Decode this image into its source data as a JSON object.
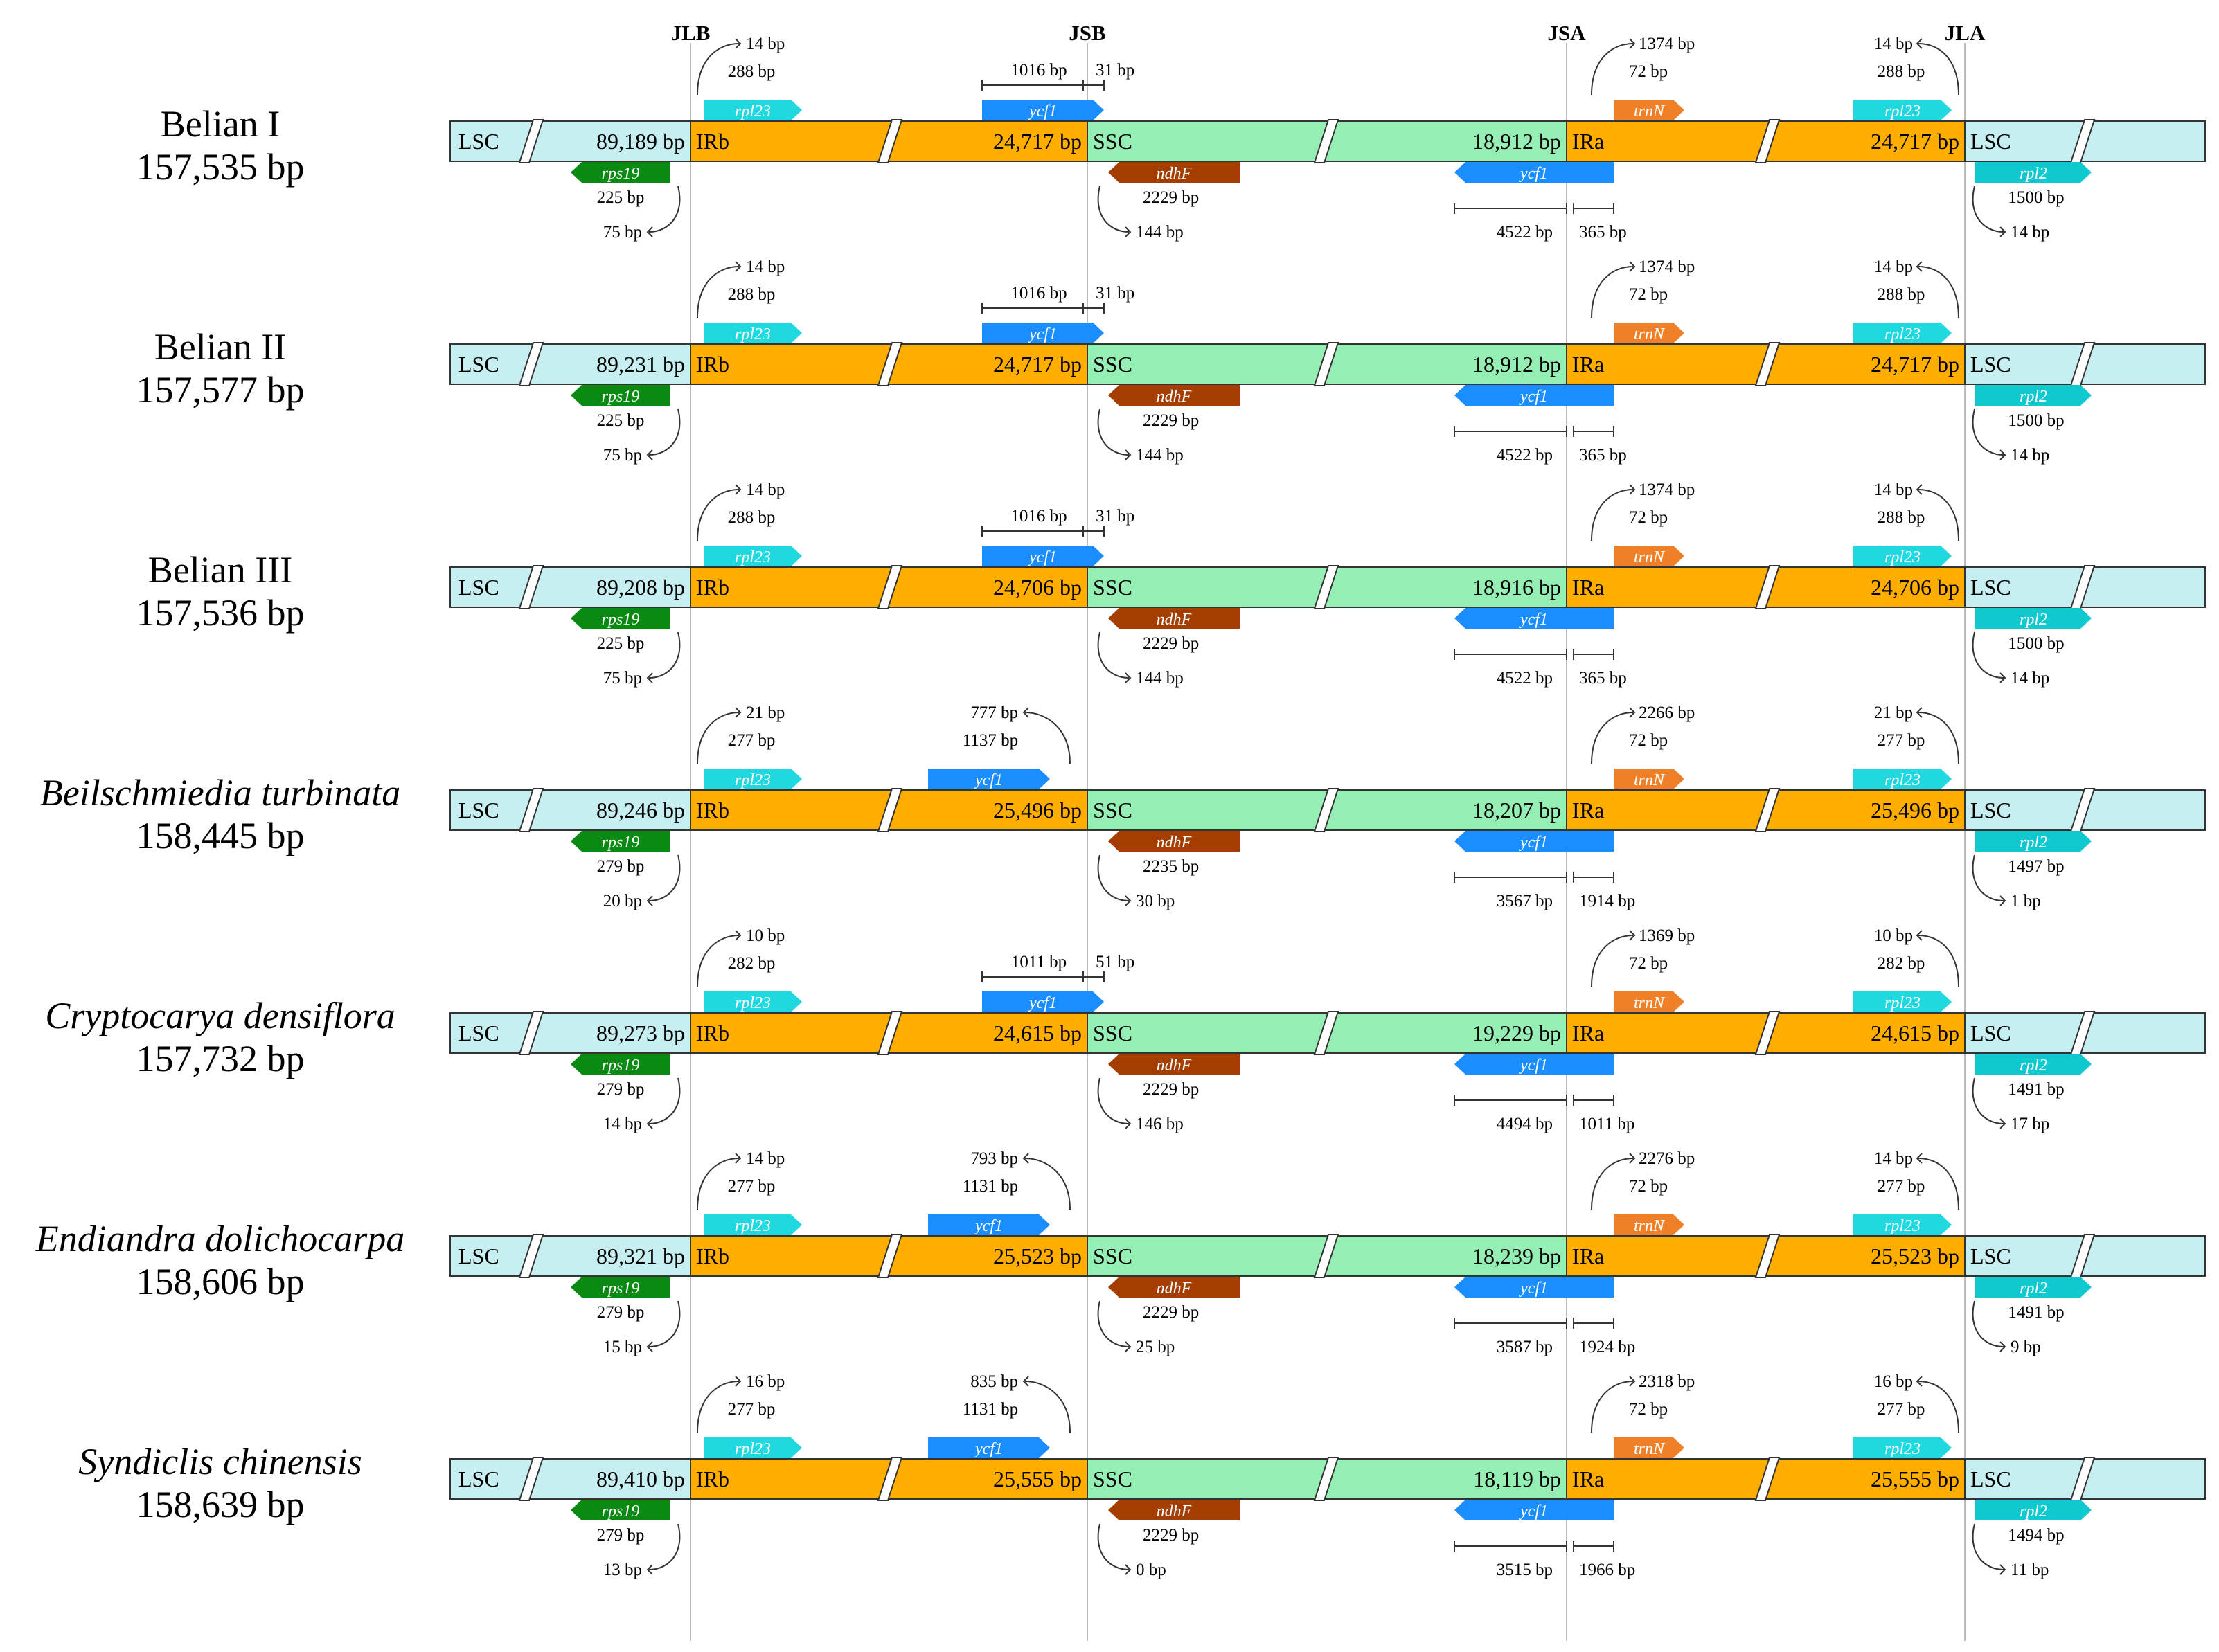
{
  "figure": {
    "junctions": [
      "JLB",
      "JSB",
      "JSA",
      "JLA"
    ],
    "region_labels": {
      "lsc": "LSC",
      "irb": "IRb",
      "ssc": "SSC",
      "ira": "IRa"
    }
  },
  "colors": {
    "lsc": "#c7eef0",
    "ir": "#ffae00",
    "ssc": "#95eeb4",
    "rps19": "#0a8a12",
    "rpl23": "#20d8e0",
    "ycf1": "#1a8dff",
    "ndhF": "#a33e00",
    "trnN": "#f08028",
    "rpl2": "#10c8d0",
    "line": "#333333",
    "guide": "#bdbdbd"
  },
  "genomes": [
    {
      "name": "Belian I",
      "italic": false,
      "size": "157,535 bp",
      "lsc": "89,189 bp",
      "irb": "24,717 bp",
      "ssc": "18,912 bp",
      "ira": "24,717 bp",
      "rpl23_left": {
        "gene": "rpl23",
        "over": "14 bp",
        "len": "288 bp"
      },
      "ycf1_irb": {
        "gene": "ycf1",
        "style": "bracket",
        "in_ir": "1016 bp",
        "in_ssc": "31 bp"
      },
      "trnN": {
        "gene": "trnN",
        "dist": "1374 bp",
        "len": "72 bp"
      },
      "rpl23_right": {
        "gene": "rpl23",
        "over": "14 bp",
        "len": "288 bp"
      },
      "rps19": {
        "gene": "rps19",
        "len": "225 bp",
        "over": "75 bp"
      },
      "ndhF": {
        "gene": "ndhF",
        "len": "2229 bp",
        "dist": "144 bp"
      },
      "ycf1_ssc": {
        "gene": "ycf1",
        "in_ssc": "4522 bp",
        "in_ira": "365 bp"
      },
      "rpl2": {
        "gene": "rpl2",
        "len": "1500 bp",
        "dist": "14 bp"
      }
    },
    {
      "name": "Belian II",
      "italic": false,
      "size": "157,577 bp",
      "lsc": "89,231 bp",
      "irb": "24,717 bp",
      "ssc": "18,912 bp",
      "ira": "24,717 bp",
      "rpl23_left": {
        "gene": "rpl23",
        "over": "14 bp",
        "len": "288 bp"
      },
      "ycf1_irb": {
        "gene": "ycf1",
        "style": "bracket",
        "in_ir": "1016 bp",
        "in_ssc": "31 bp"
      },
      "trnN": {
        "gene": "trnN",
        "dist": "1374 bp",
        "len": "72 bp"
      },
      "rpl23_right": {
        "gene": "rpl23",
        "over": "14 bp",
        "len": "288 bp"
      },
      "rps19": {
        "gene": "rps19",
        "len": "225 bp",
        "over": "75 bp"
      },
      "ndhF": {
        "gene": "ndhF",
        "len": "2229 bp",
        "dist": "144 bp"
      },
      "ycf1_ssc": {
        "gene": "ycf1",
        "in_ssc": "4522 bp",
        "in_ira": "365 bp"
      },
      "rpl2": {
        "gene": "rpl2",
        "len": "1500 bp",
        "dist": "14 bp"
      }
    },
    {
      "name": "Belian III",
      "italic": false,
      "size": "157,536 bp",
      "lsc": "89,208 bp",
      "irb": "24,706 bp",
      "ssc": "18,916 bp",
      "ira": "24,706 bp",
      "rpl23_left": {
        "gene": "rpl23",
        "over": "14 bp",
        "len": "288 bp"
      },
      "ycf1_irb": {
        "gene": "ycf1",
        "style": "bracket",
        "in_ir": "1016 bp",
        "in_ssc": "31 bp"
      },
      "trnN": {
        "gene": "trnN",
        "dist": "1374 bp",
        "len": "72 bp"
      },
      "rpl23_right": {
        "gene": "rpl23",
        "over": "14 bp",
        "len": "288 bp"
      },
      "rps19": {
        "gene": "rps19",
        "len": "225 bp",
        "over": "75 bp"
      },
      "ndhF": {
        "gene": "ndhF",
        "len": "2229 bp",
        "dist": "144 bp"
      },
      "ycf1_ssc": {
        "gene": "ycf1",
        "in_ssc": "4522 bp",
        "in_ira": "365 bp"
      },
      "rpl2": {
        "gene": "rpl2",
        "len": "1500 bp",
        "dist": "14 bp"
      }
    },
    {
      "name": "Beilschmiedia turbinata",
      "italic": true,
      "size": "158,445 bp",
      "lsc": "89,246 bp",
      "irb": "25,496 bp",
      "ssc": "18,207 bp",
      "ira": "25,496 bp",
      "rpl23_left": {
        "gene": "rpl23",
        "over": "21 bp",
        "len": "277 bp"
      },
      "ycf1_irb": {
        "gene": "ycf1",
        "style": "arrow",
        "dist": "777 bp",
        "len": "1137 bp"
      },
      "trnN": {
        "gene": "trnN",
        "dist": "2266 bp",
        "len": "72 bp"
      },
      "rpl23_right": {
        "gene": "rpl23",
        "over": "21 bp",
        "len": "277 bp"
      },
      "rps19": {
        "gene": "rps19",
        "len": "279 bp",
        "over": "20 bp"
      },
      "ndhF": {
        "gene": "ndhF",
        "len": "2235 bp",
        "dist": "30 bp"
      },
      "ycf1_ssc": {
        "gene": "ycf1",
        "in_ssc": "3567 bp",
        "in_ira": "1914 bp"
      },
      "rpl2": {
        "gene": "rpl2",
        "len": "1497 bp",
        "dist": "1 bp"
      }
    },
    {
      "name": "Cryptocarya densiflora",
      "italic": true,
      "size": "157,732 bp",
      "lsc": "89,273 bp",
      "irb": "24,615 bp",
      "ssc": "19,229 bp",
      "ira": "24,615 bp",
      "rpl23_left": {
        "gene": "rpl23",
        "over": "10 bp",
        "len": "282 bp"
      },
      "ycf1_irb": {
        "gene": "ycf1",
        "style": "bracket",
        "in_ir": "1011 bp",
        "in_ssc": "51 bp"
      },
      "trnN": {
        "gene": "trnN",
        "dist": "1369 bp",
        "len": "72 bp"
      },
      "rpl23_right": {
        "gene": "rpl23",
        "over": "10 bp",
        "len": "282 bp"
      },
      "rps19": {
        "gene": "rps19",
        "len": "279 bp",
        "over": "14 bp"
      },
      "ndhF": {
        "gene": "ndhF",
        "len": "2229 bp",
        "dist": "146 bp"
      },
      "ycf1_ssc": {
        "gene": "ycf1",
        "in_ssc": "4494 bp",
        "in_ira": "1011 bp"
      },
      "rpl2": {
        "gene": "rpl2",
        "len": "1491 bp",
        "dist": "17 bp"
      }
    },
    {
      "name": "Endiandra dolichocarpa",
      "italic": true,
      "size": "158,606 bp",
      "lsc": "89,321 bp",
      "irb": "25,523 bp",
      "ssc": "18,239 bp",
      "ira": "25,523 bp",
      "rpl23_left": {
        "gene": "rpl23",
        "over": "14 bp",
        "len": "277 bp"
      },
      "ycf1_irb": {
        "gene": "ycf1",
        "style": "arrow",
        "dist": "793 bp",
        "len": "1131 bp"
      },
      "trnN": {
        "gene": "trnN",
        "dist": "2276 bp",
        "len": "72 bp"
      },
      "rpl23_right": {
        "gene": "rpl23",
        "over": "14 bp",
        "len": "277 bp"
      },
      "rps19": {
        "gene": "rps19",
        "len": "279 bp",
        "over": "15 bp"
      },
      "ndhF": {
        "gene": "ndhF",
        "len": "2229 bp",
        "dist": "25 bp"
      },
      "ycf1_ssc": {
        "gene": "ycf1",
        "in_ssc": "3587 bp",
        "in_ira": "1924 bp"
      },
      "rpl2": {
        "gene": "rpl2",
        "len": "1491 bp",
        "dist": "9 bp"
      }
    },
    {
      "name": "Syndiclis chinensis",
      "italic": true,
      "size": "158,639 bp",
      "lsc": "89,410 bp",
      "irb": "25,555 bp",
      "ssc": "18,119 bp",
      "ira": "25,555 bp",
      "rpl23_left": {
        "gene": "rpl23",
        "over": "16 bp",
        "len": "277 bp"
      },
      "ycf1_irb": {
        "gene": "ycf1",
        "style": "arrow",
        "dist": "835 bp",
        "len": "1131 bp"
      },
      "trnN": {
        "gene": "trnN",
        "dist": "2318 bp",
        "len": "72 bp"
      },
      "rpl23_right": {
        "gene": "rpl23",
        "over": "16 bp",
        "len": "277 bp"
      },
      "rps19": {
        "gene": "rps19",
        "len": "279 bp",
        "over": "13 bp"
      },
      "ndhF": {
        "gene": "ndhF",
        "len": "2229 bp",
        "dist": "0 bp"
      },
      "ycf1_ssc": {
        "gene": "ycf1",
        "in_ssc": "3515 bp",
        "in_ira": "1966 bp"
      },
      "rpl2": {
        "gene": "rpl2",
        "len": "1494 bp",
        "dist": "11 bp"
      }
    }
  ]
}
